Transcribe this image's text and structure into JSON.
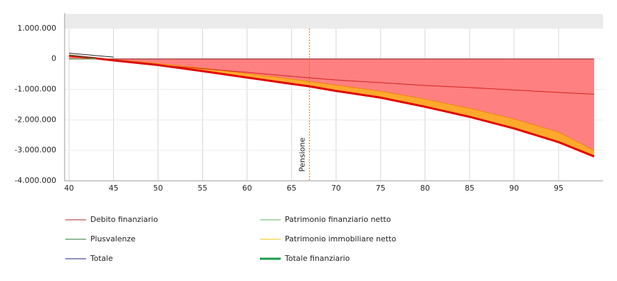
{
  "chart_data": {
    "type": "line",
    "x": [
      40,
      43,
      45,
      50,
      55,
      60,
      65,
      67,
      70,
      75,
      80,
      85,
      90,
      95,
      99
    ],
    "xlim": [
      39.5,
      100
    ],
    "xticks": [
      40,
      45,
      50,
      55,
      60,
      65,
      70,
      75,
      80,
      85,
      90,
      95
    ],
    "ylim": [
      -4000000,
      1500000
    ],
    "yticks": [
      {
        "value": -4000000,
        "label": "-4.000.000"
      },
      {
        "value": -3000000,
        "label": "-3.000.000"
      },
      {
        "value": -2000000,
        "label": "-2.000.000"
      },
      {
        "value": -1000000,
        "label": "-1.000.000"
      },
      0,
      {
        "value": 1000000,
        "label": "1.000.000"
      }
    ],
    "grid": true,
    "series": [
      {
        "name": "Patrimonio immobiliare netto",
        "color": "#f1c40f",
        "line_color": "#e8890c",
        "fill": "#ff8080",
        "values": [
          110000,
          40000,
          -20000,
          -150000,
          -300000,
          -480000,
          -660000,
          -740000,
          -860000,
          -1060000,
          -1320000,
          -1620000,
          -1970000,
          -2400000,
          -3000000
        ]
      },
      {
        "name": "Totale finanziario",
        "color": "#1a9c4a",
        "line_color": "#e00000",
        "fill": "#ffa82e",
        "line_width": 3,
        "values": [
          110000,
          20000,
          -50000,
          -200000,
          -400000,
          -610000,
          -820000,
          -900000,
          -1050000,
          -1270000,
          -1570000,
          -1900000,
          -2280000,
          -2730000,
          -3200000
        ]
      },
      {
        "name": "Debito finanziario",
        "color": "#b22222",
        "line_color": "#d42020",
        "values": [
          0,
          0,
          -50000,
          -200000,
          -320000,
          -440000,
          -570000,
          -620000,
          -690000,
          -780000,
          -870000,
          -940000,
          -1020000,
          -1100000,
          -1160000
        ]
      },
      {
        "name": "Patrimonio finanziario netto",
        "color": "#5cb85c",
        "line_color": "#5cb85c",
        "values": [
          0,
          0,
          null,
          null,
          null,
          null,
          null,
          null,
          null,
          null,
          null,
          null,
          null,
          null,
          null
        ]
      },
      {
        "name": "Plusvalenze",
        "color": "#1e7b34",
        "line_color": "#1e7b34",
        "values": [
          130000,
          20000,
          null,
          null,
          null,
          null,
          null,
          null,
          null,
          null,
          null,
          null,
          null,
          null,
          null
        ]
      },
      {
        "name": "Totale",
        "color": "#1a237e",
        "line_color": "#222222",
        "values": [
          190000,
          110000,
          60000,
          null,
          null,
          null,
          null,
          null,
          null,
          null,
          null,
          null,
          null,
          null,
          null
        ]
      }
    ],
    "legend_order": [
      2,
      3,
      4,
      0,
      5,
      1
    ],
    "annotations": [
      {
        "x": 67,
        "label": "Pensione",
        "color": "#d2691e"
      }
    ]
  }
}
